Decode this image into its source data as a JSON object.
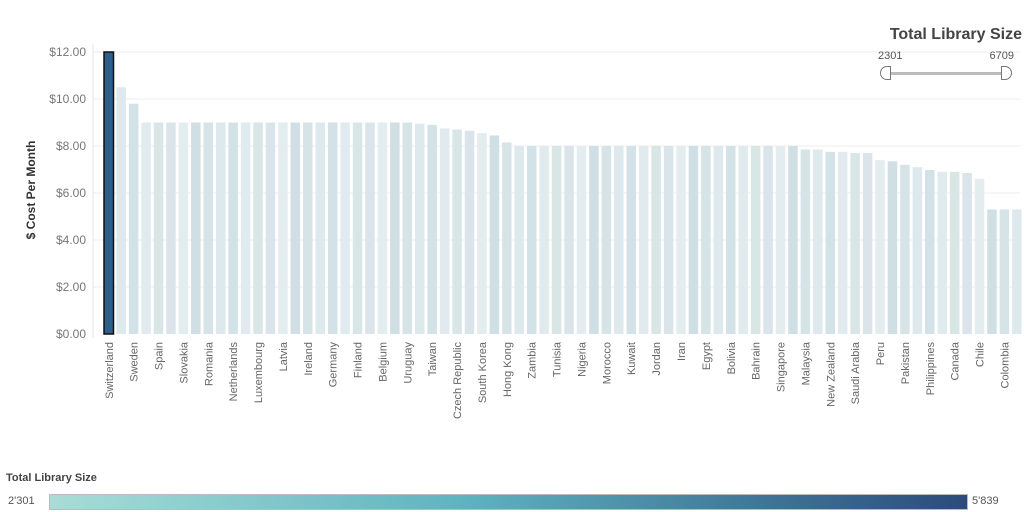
{
  "chart_data": {
    "type": "bar",
    "title": "",
    "xlabel": "",
    "ylabel": "$ Cost Per Month",
    "ylim": [
      0,
      12
    ],
    "yticks": [
      "$0.00",
      "$2.00",
      "$4.00",
      "$6.00",
      "$8.00",
      "$10.00",
      "$12.00"
    ],
    "ytick_values": [
      0,
      2,
      4,
      6,
      8,
      10,
      12
    ],
    "grid": true,
    "highlighted": "Switzerland",
    "categories": [
      "Switzerland",
      "",
      "Sweden",
      "",
      "Spain",
      "",
      "Slovakia",
      "",
      "Romania",
      "",
      "Netherlands",
      "",
      "Luxembourg",
      "",
      "Latvia",
      "",
      "Ireland",
      "",
      "Germany",
      "",
      "Finland",
      "",
      "Belgium",
      "",
      "Uruguay",
      "",
      "Taiwan",
      "",
      "Czech Republic",
      "",
      "South Korea",
      "",
      "Hong Kong",
      "",
      "Zambia",
      "",
      "Tunisia",
      "",
      "Nigeria",
      "",
      "Morocco",
      "",
      "Kuwait",
      "",
      "Jordan",
      "",
      "Iran",
      "",
      "Egypt",
      "",
      "Bolivia",
      "",
      "Bahrain",
      "",
      "Singapore",
      "",
      "Malaysia",
      "",
      "New Zealand",
      "",
      "Saudi Arabia",
      "",
      "Peru",
      "",
      "Pakistan",
      "",
      "Philippines",
      "",
      "Canada",
      "",
      "Chile",
      "",
      "Colombia",
      ""
    ],
    "values": [
      12.0,
      10.5,
      9.8,
      9.0,
      9.0,
      9.0,
      9.0,
      9.0,
      9.0,
      9.0,
      9.0,
      9.0,
      9.0,
      9.0,
      9.0,
      9.0,
      9.0,
      9.0,
      9.0,
      9.0,
      9.0,
      9.0,
      9.0,
      9.0,
      9.0,
      8.95,
      8.9,
      8.75,
      8.7,
      8.65,
      8.55,
      8.45,
      8.15,
      8.0,
      8.0,
      8.0,
      8.0,
      8.0,
      8.0,
      8.0,
      8.0,
      8.0,
      8.0,
      8.0,
      8.0,
      8.0,
      8.0,
      8.0,
      8.0,
      8.0,
      8.0,
      8.0,
      8.0,
      8.0,
      8.0,
      8.0,
      7.85,
      7.85,
      7.75,
      7.75,
      7.7,
      7.7,
      7.4,
      7.35,
      7.2,
      7.1,
      6.98,
      6.9,
      6.9,
      6.85,
      6.6,
      5.3,
      5.3,
      5.3
    ],
    "color_legend": {
      "title": "Total Library Size",
      "min_label": "2'301",
      "max_label": "5'839",
      "min_color": "#a9dcd6",
      "max_color": "#2b4b7a"
    }
  },
  "colors": {
    "highlight": "#2e5f8a",
    "highlight_border": "#111111",
    "bar_palette": [
      "#d6e4e8",
      "#dde9ec",
      "#d2e2e6",
      "#e1ebef",
      "#d8e6e6",
      "#dbe4ea",
      "#e3edef",
      "#d0dfe4"
    ]
  },
  "filter": {
    "title": "Total Library Size",
    "min": "2301",
    "max": "6709"
  }
}
